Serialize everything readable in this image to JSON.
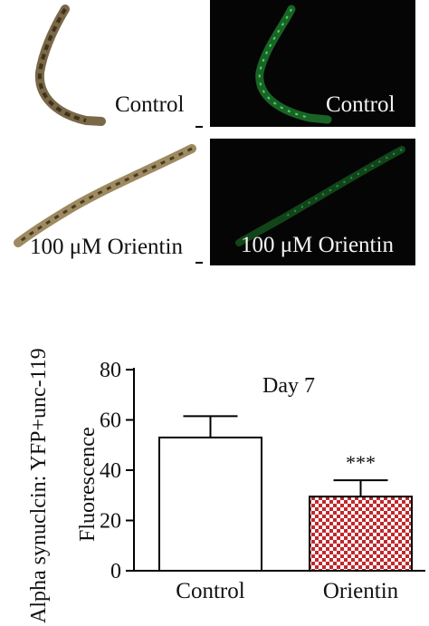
{
  "figure": {
    "panels": [
      {
        "id": "bright-control",
        "label": "Control",
        "imaging": "brightfield"
      },
      {
        "id": "fluor-control",
        "label": "Control",
        "imaging": "fluorescence"
      },
      {
        "id": "bright-orientin",
        "label": "100 μM Orientin",
        "imaging": "brightfield"
      },
      {
        "id": "fluor-orientin",
        "label": "100 μM Orientin",
        "imaging": "fluorescence"
      }
    ],
    "colors": {
      "worm_brightfield": "#6b5a3e",
      "worm_fluorescence": "#2fbf4a",
      "fluor_background": "#050505",
      "bar_control": "#ffffff",
      "bar_orientin_pattern": "#c0282c"
    }
  },
  "chart_data": {
    "type": "bar",
    "title": "Day 7",
    "ylabel_line1": "Alpha synuclcin: YFP+unc-119",
    "ylabel_line2": "Fluorescence",
    "categories": [
      "Control",
      "Orientin"
    ],
    "values": [
      53,
      29.5
    ],
    "errors": [
      8.5,
      6.5
    ],
    "ylim": [
      0,
      80
    ],
    "yticks": [
      0,
      20,
      40,
      60,
      80
    ],
    "significance": [
      "",
      "***"
    ],
    "fills": [
      "#ffffff",
      "checker-red"
    ]
  }
}
